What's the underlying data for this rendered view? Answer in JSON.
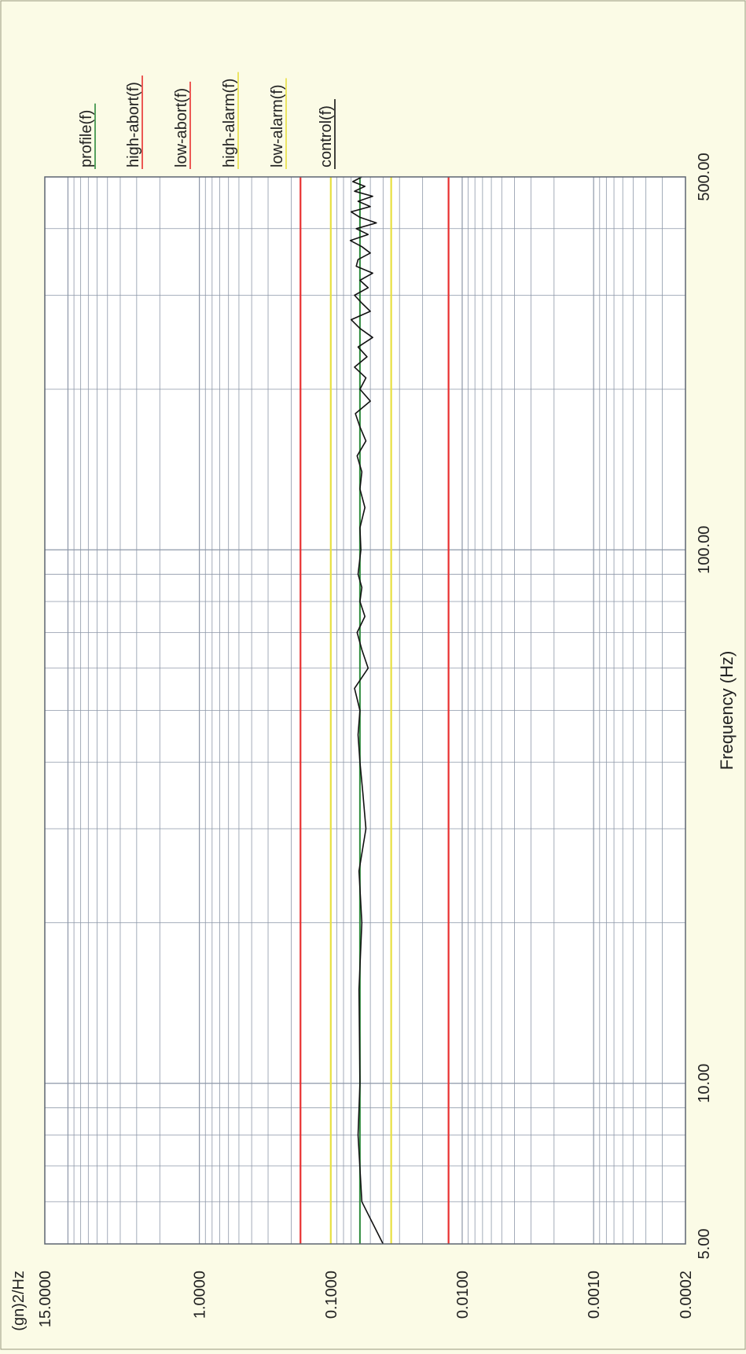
{
  "chart_data": {
    "type": "line",
    "orientation": "rotated-90-counterclockwise",
    "xlabel": "Frequency (Hz)",
    "ylabel": "(gn)2/Hz",
    "x_scale": "log",
    "y_scale": "log",
    "xlim": [
      5,
      500
    ],
    "ylim": [
      0.0002,
      15
    ],
    "grid": true,
    "legend_position": "top-right",
    "x_tick_labels": [
      {
        "value": 5,
        "label": "5.00"
      },
      {
        "value": 10,
        "label": "10.00"
      },
      {
        "value": 100,
        "label": "100.00"
      },
      {
        "value": 500,
        "label": "500.00"
      }
    ],
    "y_tick_labels": [
      {
        "value": 15,
        "label": "15.0000"
      },
      {
        "value": 1,
        "label": "1.0000"
      },
      {
        "value": 0.1,
        "label": "0.1000"
      },
      {
        "value": 0.01,
        "label": "0.0100"
      },
      {
        "value": 0.001,
        "label": "0.0010"
      },
      {
        "value": 0.0002,
        "label": "0.0002"
      }
    ],
    "series": [
      {
        "name": "profile(f)",
        "color": "#2e8b3c",
        "values": [
          0.06,
          0.06
        ]
      },
      {
        "name": "high-abort(f)",
        "color": "#e83030",
        "values": [
          0.17,
          0.17
        ]
      },
      {
        "name": "low-abort(f)",
        "color": "#e83030",
        "values": [
          0.0127,
          0.0127
        ]
      },
      {
        "name": "high-alarm(f)",
        "color": "#e8e040",
        "values": [
          0.1,
          0.1
        ]
      },
      {
        "name": "low-alarm(f)",
        "color": "#e8e040",
        "values": [
          0.0347,
          0.0347
        ]
      },
      {
        "name": "control(f)",
        "color": "#111111",
        "x": [
          5.0,
          6.0,
          8.0,
          10.0,
          15.0,
          20.0,
          25.0,
          30.0,
          35.0,
          40.0,
          45.0,
          50.0,
          55.0,
          60.0,
          65.0,
          70.0,
          75.0,
          80.0,
          85.0,
          90.0,
          100.0,
          110.0,
          120.0,
          130.0,
          140.0,
          150.0,
          160.0,
          170.0,
          180.0,
          190.0,
          200.0,
          210.0,
          220.0,
          230.0,
          240.0,
          250.0,
          260.0,
          270.0,
          280.0,
          290.0,
          300.0,
          310.0,
          320.0,
          330.0,
          340.0,
          350.0,
          360.0,
          370.0,
          380.0,
          390.0,
          400.0,
          410.0,
          420.0,
          430.0,
          440.0,
          450.0,
          460.0,
          470.0,
          480.0,
          490.0,
          500.0
        ],
        "values": [
          0.04,
          0.058,
          0.062,
          0.06,
          0.061,
          0.058,
          0.061,
          0.054,
          0.057,
          0.06,
          0.062,
          0.06,
          0.066,
          0.052,
          0.058,
          0.063,
          0.055,
          0.06,
          0.058,
          0.062,
          0.059,
          0.06,
          0.055,
          0.06,
          0.058,
          0.063,
          0.054,
          0.06,
          0.065,
          0.05,
          0.06,
          0.054,
          0.066,
          0.053,
          0.062,
          0.048,
          0.06,
          0.07,
          0.05,
          0.058,
          0.066,
          0.052,
          0.06,
          0.048,
          0.064,
          0.062,
          0.05,
          0.058,
          0.071,
          0.052,
          0.064,
          0.045,
          0.06,
          0.07,
          0.05,
          0.062,
          0.048,
          0.066,
          0.055,
          0.068,
          0.058
        ]
      }
    ]
  }
}
